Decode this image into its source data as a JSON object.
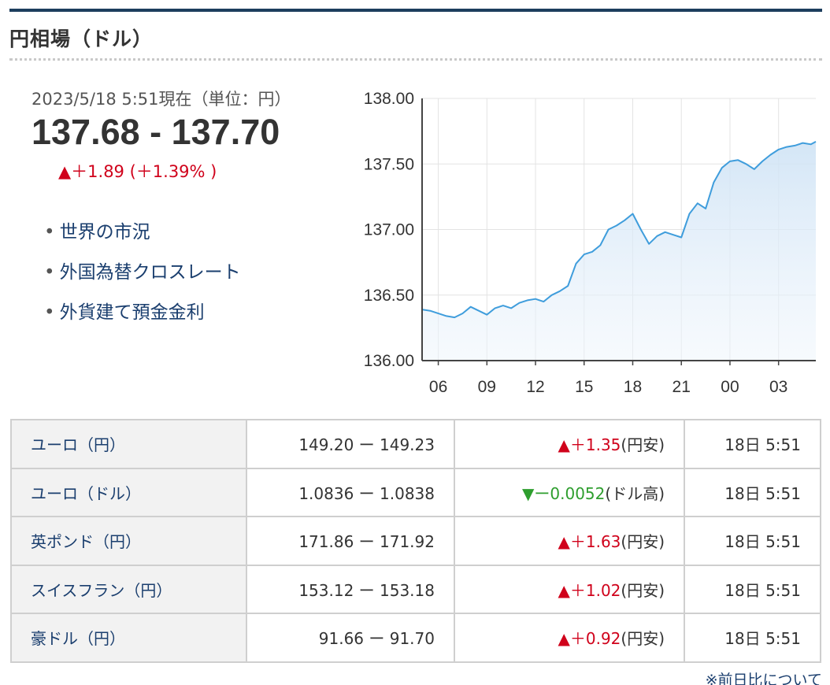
{
  "header": {
    "title": "円相場（ドル）"
  },
  "quote": {
    "time": "2023/5/18 5:51現在（単位：円）",
    "rate": "137.68 - 137.70",
    "change_arrow": "▲",
    "change": "＋1.89 (＋1.39% )"
  },
  "links": [
    {
      "label": "世界の市況"
    },
    {
      "label": "外国為替クロスレート"
    },
    {
      "label": "外貨建て預金金利"
    }
  ],
  "chart_data": {
    "type": "area",
    "series": [
      {
        "color": "#3f9ddc",
        "x": [
          5.0,
          5.5,
          6.0,
          6.5,
          7.0,
          7.5,
          8.0,
          8.5,
          9.0,
          9.5,
          10.0,
          10.5,
          11.0,
          11.5,
          12.0,
          12.5,
          13.0,
          13.5,
          14.0,
          14.5,
          15.0,
          15.5,
          16.0,
          16.5,
          17.0,
          17.5,
          18.0,
          18.5,
          19.0,
          19.5,
          20.0,
          20.5,
          21.0,
          21.5,
          22.0,
          22.5,
          23.0,
          23.5,
          24.0,
          24.5,
          25.0,
          25.5,
          26.0,
          26.5,
          27.0,
          27.5,
          28.0,
          28.5,
          29.0,
          29.3
        ],
        "values": [
          136.39,
          136.38,
          136.36,
          136.34,
          136.33,
          136.36,
          136.41,
          136.38,
          136.35,
          136.4,
          136.42,
          136.4,
          136.44,
          136.46,
          136.47,
          136.45,
          136.5,
          136.53,
          136.57,
          136.74,
          136.81,
          136.83,
          136.88,
          137.0,
          137.03,
          137.07,
          137.12,
          137.0,
          136.89,
          136.95,
          136.98,
          136.96,
          136.94,
          137.12,
          137.2,
          137.16,
          137.36,
          137.47,
          137.52,
          137.53,
          137.5,
          137.46,
          137.52,
          137.57,
          137.61,
          137.63,
          137.64,
          137.66,
          137.65,
          137.67
        ]
      }
    ],
    "ylim": [
      136.0,
      138.0
    ],
    "yticks": [
      "138.00",
      "137.50",
      "137.00",
      "136.50",
      "136.00"
    ],
    "xtick_values": [
      6,
      9,
      12,
      15,
      18,
      21,
      24,
      27
    ],
    "xticks": [
      "06",
      "09",
      "12",
      "15",
      "18",
      "21",
      "00",
      "03"
    ],
    "grid": true
  },
  "rates_table": {
    "rows": [
      {
        "name": "ユーロ（円）",
        "bidask": "149.20 ー 149.23",
        "arrow": "▲",
        "change": "＋1.35",
        "direction": "up",
        "note": "(円安)",
        "time": "18日 5:51"
      },
      {
        "name": "ユーロ（ドル）",
        "bidask": "1.0836 ー 1.0838",
        "arrow": "▼",
        "change": "ー0.0052",
        "direction": "down",
        "note": "(ドル高)",
        "time": "18日 5:51"
      },
      {
        "name": "英ポンド（円）",
        "bidask": "171.86 ー 171.92",
        "arrow": "▲",
        "change": "＋1.63",
        "direction": "up",
        "note": "(円安)",
        "time": "18日 5:51"
      },
      {
        "name": "スイスフラン（円）",
        "bidask": "153.12 ー 153.18",
        "arrow": "▲",
        "change": "＋1.02",
        "direction": "up",
        "note": "(円安)",
        "time": "18日 5:51"
      },
      {
        "name": "豪ドル（円）",
        "bidask": "91.66 ー 91.70",
        "arrow": "▲",
        "change": "＋0.92",
        "direction": "up",
        "note": "(円安)",
        "time": "18日 5:51"
      }
    ]
  },
  "footnote": "※前日比について"
}
